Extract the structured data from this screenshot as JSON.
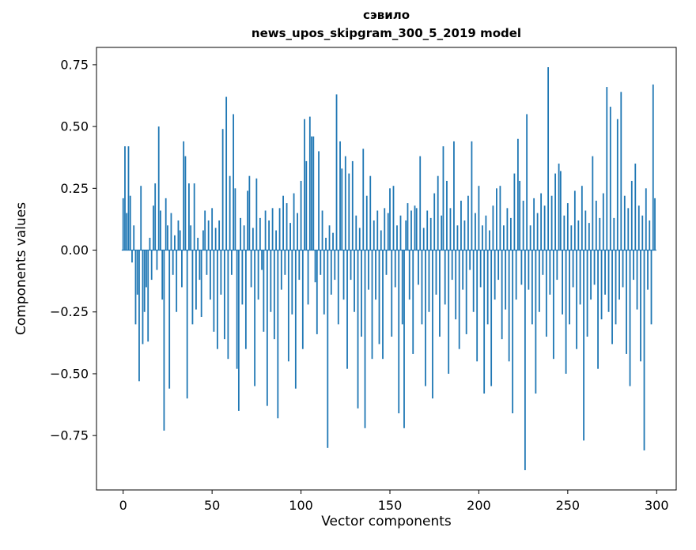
{
  "figure": {
    "title_line1": "сэвило",
    "title_line2": "news_upos_skipgram_300_5_2019 model",
    "xlabel": "Vector components",
    "ylabel": "Components values"
  },
  "chart_data": {
    "type": "bar",
    "title": "сэвило",
    "subtitle": "news_upos_skipgram_300_5_2019 model",
    "xlabel": "Vector components",
    "ylabel": "Components values",
    "bar_color": "#1f77b4",
    "axis_color": "#000000",
    "background": "#ffffff",
    "grid": false,
    "legend": false,
    "zero_line": true,
    "n_components": 300,
    "xlim": [
      -15,
      311
    ],
    "ylim": [
      -0.97,
      0.82
    ],
    "x_ticks": [
      0,
      50,
      100,
      150,
      200,
      250,
      300
    ],
    "x_tick_labels": [
      "0",
      "50",
      "100",
      "150",
      "200",
      "250",
      "300"
    ],
    "y_ticks": [
      0.75,
      0.5,
      0.25,
      0,
      -0.25,
      -0.5,
      -0.75
    ],
    "y_tick_labels": [
      "0.75",
      "0.50",
      "0.25",
      "0.00",
      "−0.25",
      "−0.50",
      "−0.75"
    ],
    "values": [
      0.21,
      0.42,
      0.15,
      0.42,
      0.22,
      -0.05,
      0.1,
      -0.3,
      -0.18,
      -0.53,
      0.26,
      -0.38,
      -0.25,
      -0.15,
      -0.37,
      0.05,
      -0.12,
      0.18,
      0.27,
      -0.08,
      0.5,
      0.16,
      -0.2,
      -0.73,
      0.21,
      0.1,
      -0.56,
      0.15,
      -0.1,
      0.06,
      -0.25,
      0.12,
      0.08,
      -0.15,
      0.44,
      0.38,
      -0.6,
      0.27,
      0.1,
      -0.3,
      0.27,
      -0.24,
      0.05,
      -0.12,
      -0.27,
      0.08,
      0.16,
      -0.1,
      0.12,
      -0.2,
      0.17,
      -0.33,
      0.09,
      -0.4,
      0.12,
      -0.18,
      0.49,
      -0.36,
      0.62,
      -0.44,
      0.3,
      -0.1,
      0.55,
      0.25,
      -0.48,
      -0.65,
      0.13,
      -0.22,
      0.1,
      -0.4,
      0.24,
      0.3,
      -0.15,
      0.09,
      -0.55,
      0.29,
      -0.2,
      0.13,
      -0.08,
      -0.33,
      0.16,
      -0.63,
      0.12,
      -0.25,
      0.17,
      -0.36,
      0.08,
      -0.68,
      0.17,
      -0.16,
      0.22,
      -0.1,
      0.19,
      -0.45,
      0.11,
      -0.26,
      0.23,
      -0.56,
      0.15,
      -0.12,
      0.28,
      -0.4,
      0.53,
      0.36,
      -0.22,
      0.54,
      0.46,
      0.46,
      -0.13,
      -0.34,
      0.4,
      -0.1,
      0.16,
      -0.26,
      0.05,
      -0.8,
      0.1,
      -0.18,
      0.07,
      -0.12,
      0.63,
      -0.3,
      0.44,
      0.33,
      -0.2,
      0.38,
      -0.48,
      0.31,
      -0.12,
      0.36,
      -0.25,
      0.14,
      -0.64,
      0.09,
      -0.35,
      0.41,
      -0.72,
      0.22,
      -0.16,
      0.3,
      -0.44,
      0.12,
      -0.2,
      0.16,
      -0.38,
      0.08,
      -0.44,
      0.17,
      -0.1,
      0.15,
      0.25,
      -0.35,
      0.26,
      -0.15,
      0.1,
      -0.66,
      0.14,
      -0.3,
      -0.72,
      0.12,
      0.19,
      -0.2,
      0.16,
      -0.42,
      0.18,
      0.17,
      -0.14,
      0.38,
      -0.3,
      0.09,
      -0.55,
      0.16,
      -0.25,
      0.13,
      -0.6,
      0.23,
      -0.18,
      0.3,
      -0.35,
      0.14,
      0.42,
      -0.22,
      0.28,
      -0.5,
      0.17,
      -0.12,
      0.44,
      -0.28,
      0.1,
      -0.4,
      0.2,
      -0.16,
      0.12,
      -0.34,
      0.22,
      -0.08,
      0.44,
      -0.25,
      0.15,
      -0.45,
      0.26,
      -0.15,
      0.1,
      -0.58,
      0.14,
      -0.3,
      0.08,
      -0.55,
      0.18,
      -0.2,
      0.25,
      -0.12,
      0.26,
      -0.36,
      0.1,
      -0.24,
      0.17,
      -0.45,
      0.13,
      -0.66,
      0.31,
      -0.2,
      0.45,
      0.28,
      -0.14,
      0.2,
      -0.89,
      0.55,
      -0.16,
      0.1,
      -0.3,
      0.21,
      -0.58,
      0.15,
      -0.25,
      0.23,
      -0.1,
      0.18,
      -0.35,
      0.74,
      -0.18,
      0.22,
      -0.44,
      0.31,
      -0.12,
      0.35,
      0.32,
      -0.26,
      0.14,
      -0.5,
      0.19,
      -0.3,
      0.1,
      -0.15,
      0.24,
      -0.4,
      0.12,
      -0.22,
      0.26,
      -0.77,
      0.16,
      -0.35,
      0.11,
      -0.2,
      0.38,
      -0.14,
      0.2,
      -0.48,
      0.13,
      -0.28,
      0.23,
      -0.18,
      0.66,
      -0.25,
      0.58,
      -0.38,
      0.13,
      -0.3,
      0.53,
      -0.2,
      0.64,
      -0.15,
      0.22,
      -0.42,
      0.17,
      -0.55,
      0.28,
      -0.12,
      0.35,
      -0.24,
      0.18,
      -0.45,
      0.14,
      -0.81,
      0.25,
      -0.16,
      0.12,
      -0.3,
      0.67,
      0.21
    ]
  }
}
